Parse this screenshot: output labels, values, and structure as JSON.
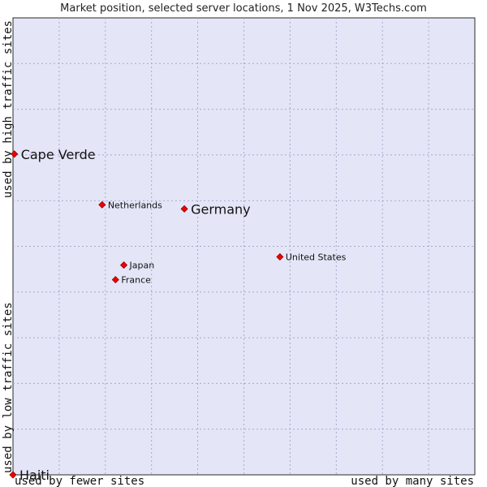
{
  "chart_data": {
    "type": "scatter",
    "title": "Market position, selected server locations, 1 Nov 2025, W3Techs.com",
    "x_axis": {
      "low_label": "used by fewer sites",
      "high_label": "used by many sites",
      "range": [
        0,
        100
      ]
    },
    "y_axis": {
      "low_label": "used by low traffic sites",
      "high_label": "used by high traffic sites",
      "range": [
        0,
        100
      ]
    },
    "grid": true,
    "colors": {
      "plot_background": "#e4e6f8",
      "point": "#ee0000",
      "point_outline": "#990000"
    },
    "points": [
      {
        "label": "Cape Verde",
        "x": 0.3,
        "y": 70.2,
        "size": "large"
      },
      {
        "label": "Netherlands",
        "x": 19.3,
        "y": 59.1,
        "size": "small"
      },
      {
        "label": "Germany",
        "x": 37.1,
        "y": 58.2,
        "size": "large"
      },
      {
        "label": "United States",
        "x": 57.8,
        "y": 47.7,
        "size": "small"
      },
      {
        "label": "Japan",
        "x": 24.0,
        "y": 45.9,
        "size": "small"
      },
      {
        "label": "France",
        "x": 22.2,
        "y": 42.7,
        "size": "small"
      },
      {
        "label": "Haiti",
        "x": 0.0,
        "y": 0.0,
        "size": "large"
      }
    ]
  }
}
